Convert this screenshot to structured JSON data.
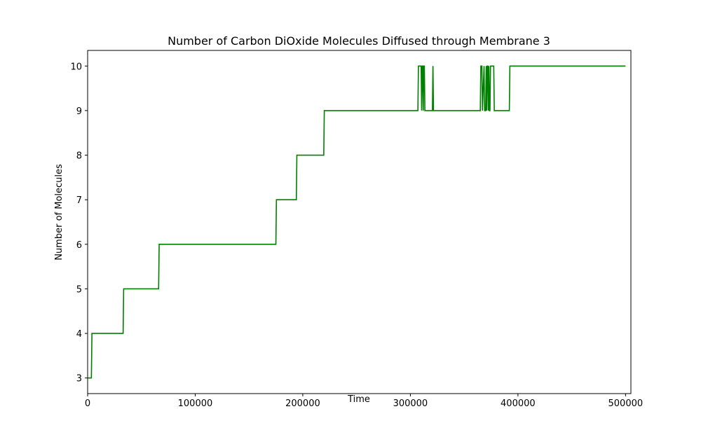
{
  "chart_data": {
    "type": "line",
    "title": "Number of Carbon DiOxide Molecules Diffused through Membrane 3",
    "xlabel": "Time",
    "ylabel": "Number of Molecules",
    "xlim": [
      0,
      505000
    ],
    "ylim": [
      2.65,
      10.35
    ],
    "xticks": [
      0,
      100000,
      200000,
      300000,
      400000,
      500000
    ],
    "xtick_labels": [
      "0",
      "100000",
      "200000",
      "300000",
      "400000",
      "500000"
    ],
    "yticks": [
      3,
      4,
      5,
      6,
      7,
      8,
      9,
      10
    ],
    "ytick_labels": [
      "3",
      "4",
      "5",
      "6",
      "7",
      "8",
      "9",
      "10"
    ],
    "grid": false,
    "color": "#008000",
    "series": [
      {
        "x": [
          0,
          3500,
          4000,
          33000,
          33500,
          66000,
          66500,
          175000,
          175500,
          194000,
          194500,
          219500,
          220000,
          307000,
          307500,
          310000,
          310500,
          311000,
          311500,
          312000,
          312500,
          313000,
          313500,
          320500,
          321000,
          321500,
          322000,
          365000,
          365500,
          366500,
          367000,
          368500,
          369000,
          370000,
          370500,
          371000,
          371500,
          372000,
          372500,
          373000,
          373500,
          374000,
          374500,
          376500,
          377000,
          377500,
          378000,
          392000,
          392500,
          500000
        ],
        "y": [
          3,
          3,
          4,
          4,
          5,
          5,
          6,
          6,
          7,
          7,
          8,
          8,
          9,
          9,
          10,
          10,
          9,
          10,
          10,
          9,
          10,
          10,
          9,
          9,
          10,
          9,
          9,
          9,
          10,
          10,
          9,
          10,
          9,
          9,
          10,
          9,
          10,
          10,
          9,
          10,
          9,
          9,
          10,
          10,
          10,
          10,
          9,
          9,
          10,
          10
        ]
      }
    ]
  }
}
